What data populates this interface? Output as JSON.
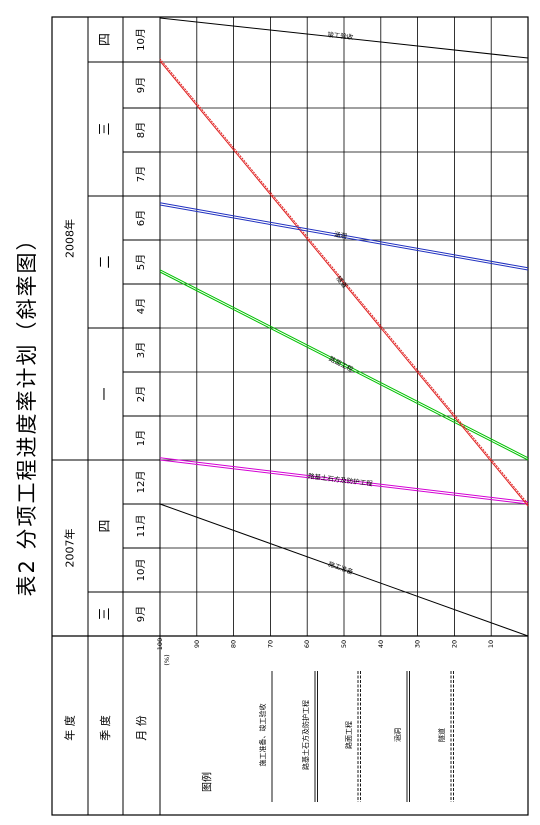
{
  "title": "表2  分项工程进度率计划（斜率图）",
  "header_labels": {
    "year": "年    度",
    "quarter": "季    度",
    "month": "月    份"
  },
  "years": [
    {
      "label": "2007年"
    },
    {
      "label": "2008年"
    }
  ],
  "quarters": [
    {
      "label": "三"
    },
    {
      "label": "四"
    },
    {
      "label": "一"
    },
    {
      "label": "二"
    },
    {
      "label": "三"
    },
    {
      "label": "四"
    }
  ],
  "months": [
    "9月",
    "10月",
    "11月",
    "12月",
    "1月",
    "2月",
    "3月",
    "4月",
    "5月",
    "6月",
    "7月",
    "8月",
    "9月",
    "10月"
  ],
  "axis": {
    "unit_label": "(%)",
    "ticks": [
      "100",
      "90",
      "80",
      "70",
      "60",
      "50",
      "40",
      "30",
      "20",
      "10"
    ]
  },
  "legend": {
    "title": "图例",
    "items": [
      {
        "label": "施工准备、竣工验收",
        "color": "#000000"
      },
      {
        "label": "路基土石方及防护工程",
        "color": "#d400d4"
      },
      {
        "label": "路面工程",
        "color": "#00c000"
      },
      {
        "label": "涵洞",
        "color": "#2030c0"
      },
      {
        "label": "隧道",
        "color": "#e02020"
      }
    ]
  },
  "chart_data": {
    "type": "line",
    "title": "分项工程进度率计划（斜率图）",
    "x_unit": "month",
    "x_range": [
      "2007-09",
      "2008-10"
    ],
    "y_unit": "%",
    "ylim": [
      0,
      100
    ],
    "series": [
      {
        "name": "施工准备",
        "color": "#000000",
        "points": [
          {
            "x": "2007-09",
            "y": 0
          },
          {
            "x": "2007-12",
            "y": 100
          }
        ]
      },
      {
        "name": "路基土石方及防护工程",
        "color": "#d400d4",
        "points": [
          {
            "x": "2007-12",
            "y": 0
          },
          {
            "x": "2007-12",
            "y": 100
          }
        ]
      },
      {
        "name": "路面工程",
        "color": "#00c000",
        "points": [
          {
            "x": "2008-01",
            "y": 0
          },
          {
            "x": "2008-04",
            "y": 100
          }
        ]
      },
      {
        "name": "隧道",
        "color": "#e02020",
        "points": [
          {
            "x": "2007-12",
            "y": 0
          },
          {
            "x": "2008-09",
            "y": 100
          }
        ]
      },
      {
        "name": "涵洞",
        "color": "#2030c0",
        "points": [
          {
            "x": "2008-05",
            "y": 0
          },
          {
            "x": "2008-06",
            "y": 100
          }
        ]
      },
      {
        "name": "竣工验收",
        "color": "#000000",
        "points": [
          {
            "x": "2008-09",
            "y": 0
          },
          {
            "x": "2008-10",
            "y": 100
          }
        ]
      }
    ]
  }
}
